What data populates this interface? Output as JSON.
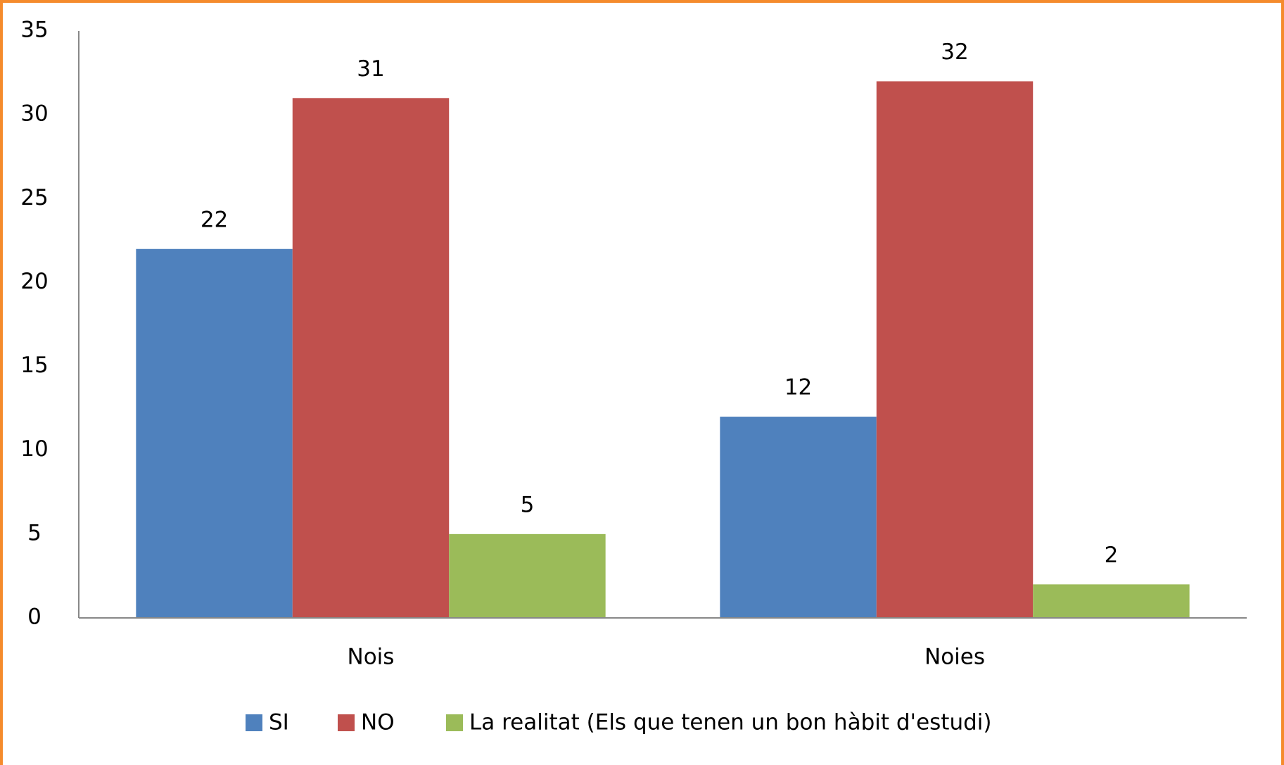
{
  "chart_data": {
    "type": "bar",
    "categories": [
      "Nois",
      "Noies"
    ],
    "series": [
      {
        "name": "SI",
        "color": "#4f81bd",
        "values": [
          22,
          12
        ]
      },
      {
        "name": "NO",
        "color": "#c0504d",
        "values": [
          31,
          32
        ]
      },
      {
        "name": "La realitat (Els que tenen un bon hàbit d'estudi)",
        "color": "#9bbb59",
        "values": [
          5,
          2
        ]
      }
    ],
    "ylim": [
      0,
      35
    ],
    "yticks": [
      0,
      5,
      10,
      15,
      20,
      25,
      30,
      35
    ],
    "grid": false,
    "legend": "bottom"
  }
}
